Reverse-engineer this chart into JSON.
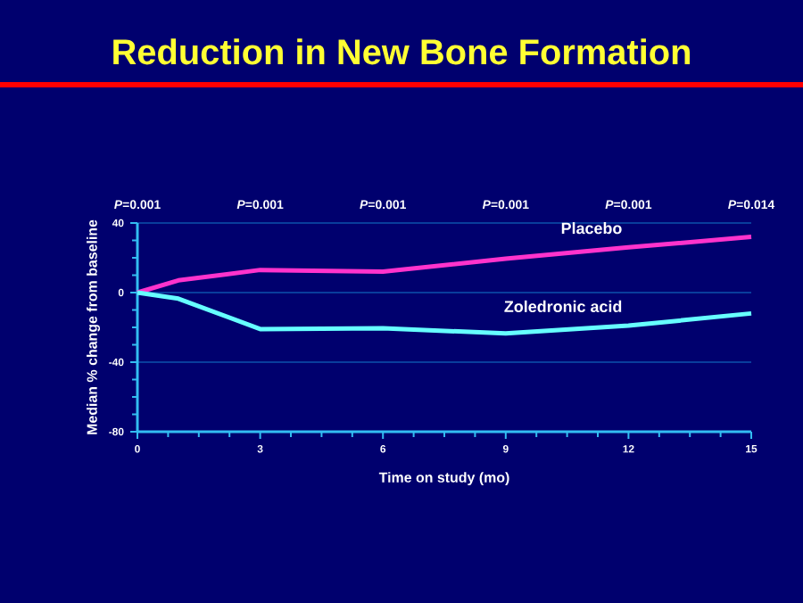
{
  "chart_data": {
    "type": "line",
    "title": "Reduction in New Bone Formation",
    "xlabel": "Time on study (mo)",
    "ylabel": "Median % change from baseline",
    "x": [
      0,
      1,
      3,
      6,
      9,
      12,
      15
    ],
    "series": [
      {
        "name": "Placebo",
        "color": "#ff33cc",
        "values": [
          0,
          7,
          13,
          12,
          19.5,
          26,
          32
        ]
      },
      {
        "name": "Zoledronic acid",
        "color": "#66ffff",
        "values": [
          0,
          -3.5,
          -21,
          -20.5,
          -23.5,
          -19,
          -12
        ]
      }
    ],
    "xlim": [
      0,
      15
    ],
    "xticks": [
      0,
      3,
      6,
      9,
      12,
      15
    ],
    "ylim": [
      -80,
      40
    ],
    "yticks": [
      -80,
      -40,
      0,
      40
    ],
    "grid": "y",
    "legend": false,
    "marker": "none",
    "line_style": "solid",
    "annotations": [
      "*P*=0.001",
      "*P*=0.001",
      "*P*=0.001",
      "*P*=0.001",
      "*P*=0.001",
      "*P*=0.014"
    ]
  }
}
